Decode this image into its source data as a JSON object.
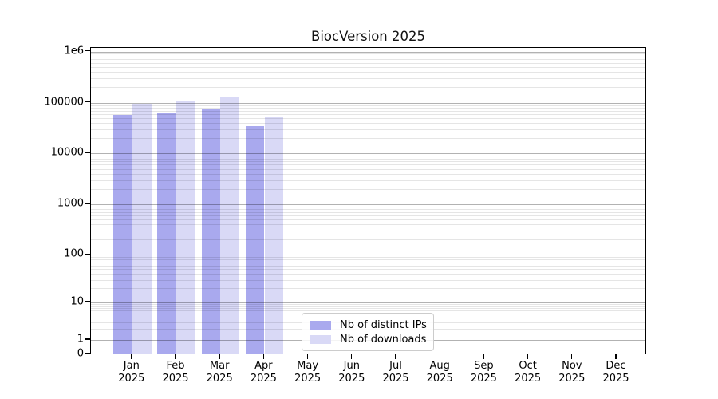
{
  "window": {
    "background": "#ffffff"
  },
  "chart_data": {
    "type": "bar",
    "title": "BiocVersion 2025",
    "xlabel": "",
    "ylabel": "",
    "yscale": "log (with 0 baseline)",
    "grid": "horizontal major and log-minor gridlines drawn over bars",
    "legend_position": "inside plot, bottom center",
    "categories": [
      "Jan 2025",
      "Feb 2025",
      "Mar 2025",
      "Apr 2025",
      "May 2025",
      "Jun 2025",
      "Jul 2025",
      "Aug 2025",
      "Sep 2025",
      "Oct 2025",
      "Nov 2025",
      "Dec 2025"
    ],
    "x_ticks": [
      {
        "month": "Jan",
        "year": "2025"
      },
      {
        "month": "Feb",
        "year": "2025"
      },
      {
        "month": "Mar",
        "year": "2025"
      },
      {
        "month": "Apr",
        "year": "2025"
      },
      {
        "month": "May",
        "year": "2025"
      },
      {
        "month": "Jun",
        "year": "2025"
      },
      {
        "month": "Jul",
        "year": "2025"
      },
      {
        "month": "Aug",
        "year": "2025"
      },
      {
        "month": "Sep",
        "year": "2025"
      },
      {
        "month": "Oct",
        "year": "2025"
      },
      {
        "month": "Nov",
        "year": "2025"
      },
      {
        "month": "Dec",
        "year": "2025"
      }
    ],
    "y_ticks": [
      {
        "label": "1e6",
        "value": 1000000
      },
      {
        "label": "100000",
        "value": 100000
      },
      {
        "label": "10000",
        "value": 10000
      },
      {
        "label": "1000",
        "value": 1000
      },
      {
        "label": "100",
        "value": 100
      },
      {
        "label": "10",
        "value": 10
      },
      {
        "label": "1",
        "value": 1
      },
      {
        "label": "0",
        "value": 0
      }
    ],
    "series": [
      {
        "name": "Nb of distinct IPs",
        "color": "#a9a9ee",
        "values": [
          53000,
          60000,
          71000,
          32000,
          null,
          null,
          null,
          null,
          null,
          null,
          null,
          null
        ]
      },
      {
        "name": "Nb of downloads",
        "color": "#d9d9f6",
        "values": [
          89000,
          104000,
          119000,
          48000,
          null,
          null,
          null,
          null,
          null,
          null,
          null,
          null
        ]
      }
    ]
  }
}
